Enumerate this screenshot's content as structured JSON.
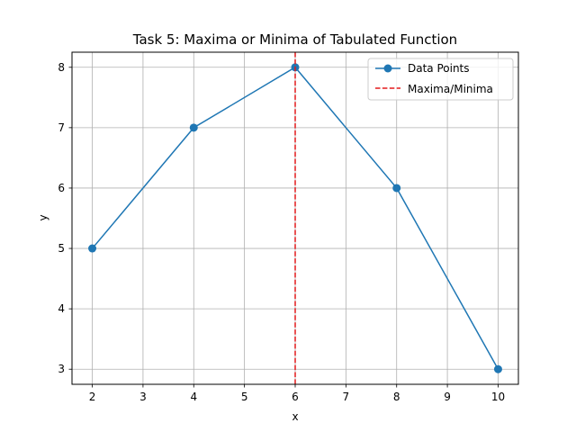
{
  "chart_data": {
    "type": "line",
    "title": "Task 5: Maxima or Minima of Tabulated Function",
    "xlabel": "x",
    "ylabel": "y",
    "xlim": [
      1.6,
      10.4
    ],
    "ylim": [
      2.75,
      8.25
    ],
    "xticks": [
      2,
      3,
      4,
      5,
      6,
      7,
      8,
      9,
      10
    ],
    "yticks": [
      3,
      4,
      5,
      6,
      7,
      8
    ],
    "grid": true,
    "legend_position": "top-right",
    "series": [
      {
        "name": "Data Points",
        "x": [
          2,
          4,
          6,
          8,
          10
        ],
        "y": [
          5,
          7,
          8,
          6,
          3
        ],
        "color": "#1f77b4",
        "marker": "circle"
      }
    ],
    "vline": {
      "name": "Maxima/Minima",
      "x": 6,
      "color": "#e41a1c",
      "style": "dashed"
    }
  }
}
